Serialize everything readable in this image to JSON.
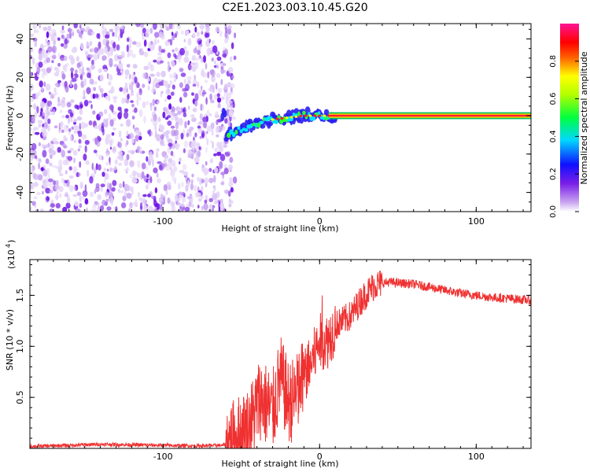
{
  "title": "C2E1.2023.003.10.45.G20",
  "chart_data": [
    {
      "type": "heatmap",
      "xlabel": "Height of straight line (km)",
      "ylabel": "Frequency (Hz)",
      "xlim": [
        -185,
        135
      ],
      "ylim": [
        -50,
        48
      ],
      "xticks": [
        -100,
        0,
        100
      ],
      "yticks": [
        -40,
        -20,
        0,
        20,
        40
      ],
      "colorbar": {
        "label": "Normalized spectral amplitude",
        "range": [
          0.0,
          1.0
        ],
        "ticks": [
          "0.0",
          "0.2",
          "0.4",
          "0.6",
          "0.8"
        ],
        "colors": [
          "#ffffff",
          "#8a2be2",
          "#0000ff",
          "#00ffff",
          "#00ff00",
          "#ffff00",
          "#ff0000",
          "#ff1493"
        ]
      },
      "description_values": {
        "noise_region_x": [
          -185,
          -57
        ],
        "signal_ridge": [
          [
            -60,
            -10
          ],
          [
            -50,
            -7
          ],
          [
            -40,
            -4
          ],
          [
            -30,
            -2
          ],
          [
            -20,
            -1
          ],
          [
            -10,
            0
          ],
          [
            0,
            0
          ],
          [
            10,
            0
          ],
          [
            135,
            0
          ]
        ]
      }
    },
    {
      "type": "line",
      "xlabel": "Height of straight line (km)",
      "ylabel": "SNR (10 * v/v)",
      "yscale_label": "(x10",
      "yscale_exp": "4",
      "xlim": [
        -185,
        135
      ],
      "ylim": [
        0,
        18500
      ],
      "xticks": [
        -100,
        0,
        100
      ],
      "yticks": [
        "0.5",
        "1.0",
        "1.5"
      ],
      "ytick_values": [
        5000,
        10000,
        15000
      ],
      "color": "#ef3131",
      "series": [
        {
          "x": [
            -185,
            -160,
            -140,
            -120,
            -100,
            -80,
            -62,
            -55,
            -45,
            -38,
            -30,
            -25,
            -20,
            -15,
            -10,
            -5,
            0,
            5,
            10,
            15,
            20,
            25,
            30,
            35,
            40,
            45,
            50,
            60,
            70,
            80,
            90,
            100,
            110,
            120,
            135
          ],
          "y": [
            200,
            300,
            400,
            350,
            300,
            250,
            300,
            700,
            2000,
            5000,
            3500,
            7000,
            4500,
            5000,
            7000,
            8500,
            10500,
            10500,
            12000,
            12500,
            13000,
            14200,
            15200,
            16000,
            16200,
            16300,
            16200,
            16100,
            15800,
            15500,
            15200,
            15000,
            14800,
            14700,
            14500
          ]
        }
      ]
    }
  ]
}
